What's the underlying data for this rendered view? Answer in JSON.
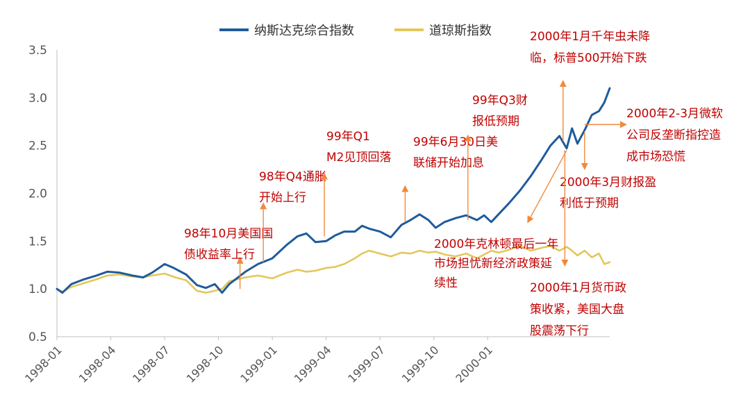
{
  "chart_data": {
    "type": "line",
    "title": "",
    "xlabel": "",
    "ylabel": "",
    "ylim": [
      0.5,
      3.5
    ],
    "yticks": [
      "0.5",
      "1.0",
      "1.5",
      "2.0",
      "2.5",
      "3.0",
      "3.5"
    ],
    "xticks": [
      "1998-01",
      "1998-04",
      "1998-07",
      "1998-10",
      "1999-01",
      "1999-04",
      "1999-07",
      "1999-10",
      "2000-01"
    ],
    "legend_position": "top-center",
    "grid": false,
    "series": [
      {
        "name": "纳斯达克综合指数",
        "color": "#1f5b9b",
        "points": [
          [
            0.0,
            1.0
          ],
          [
            0.3,
            0.96
          ],
          [
            0.8,
            1.05
          ],
          [
            1.5,
            1.1
          ],
          [
            2.2,
            1.14
          ],
          [
            2.8,
            1.18
          ],
          [
            3.5,
            1.17
          ],
          [
            4.2,
            1.14
          ],
          [
            4.8,
            1.12
          ],
          [
            5.3,
            1.17
          ],
          [
            6.0,
            1.26
          ],
          [
            6.5,
            1.22
          ],
          [
            7.2,
            1.15
          ],
          [
            7.8,
            1.04
          ],
          [
            8.3,
            1.01
          ],
          [
            8.8,
            1.05
          ],
          [
            9.2,
            0.96
          ],
          [
            9.6,
            1.05
          ],
          [
            10.5,
            1.18
          ],
          [
            11.2,
            1.26
          ],
          [
            12.0,
            1.32
          ],
          [
            12.8,
            1.46
          ],
          [
            13.4,
            1.55
          ],
          [
            13.9,
            1.58
          ],
          [
            14.4,
            1.49
          ],
          [
            15.0,
            1.5
          ],
          [
            15.5,
            1.56
          ],
          [
            16.0,
            1.6
          ],
          [
            16.6,
            1.6
          ],
          [
            17.0,
            1.66
          ],
          [
            17.4,
            1.63
          ],
          [
            18.0,
            1.6
          ],
          [
            18.6,
            1.54
          ],
          [
            19.2,
            1.67
          ],
          [
            19.7,
            1.72
          ],
          [
            20.2,
            1.78
          ],
          [
            20.7,
            1.72
          ],
          [
            21.1,
            1.64
          ],
          [
            21.6,
            1.7
          ],
          [
            22.2,
            1.74
          ],
          [
            22.8,
            1.77
          ],
          [
            23.4,
            1.72
          ],
          [
            23.8,
            1.77
          ],
          [
            24.2,
            1.7
          ],
          [
            24.6,
            1.78
          ],
          [
            25.2,
            1.9
          ],
          [
            25.8,
            2.03
          ],
          [
            26.4,
            2.18
          ],
          [
            27.0,
            2.35
          ],
          [
            27.5,
            2.5
          ],
          [
            28.0,
            2.6
          ],
          [
            28.4,
            2.47
          ],
          [
            28.7,
            2.68
          ],
          [
            29.0,
            2.52
          ],
          [
            29.4,
            2.66
          ],
          [
            29.8,
            2.82
          ],
          [
            30.2,
            2.86
          ],
          [
            30.5,
            2.95
          ],
          [
            30.8,
            3.1
          ]
        ]
      },
      {
        "name": "道琼斯指数",
        "color": "#e3c75a",
        "points": [
          [
            0.0,
            1.0
          ],
          [
            0.3,
            0.97
          ],
          [
            0.8,
            1.02
          ],
          [
            1.5,
            1.06
          ],
          [
            2.2,
            1.1
          ],
          [
            2.8,
            1.14
          ],
          [
            3.5,
            1.15
          ],
          [
            4.2,
            1.13
          ],
          [
            4.8,
            1.12
          ],
          [
            5.3,
            1.14
          ],
          [
            6.0,
            1.16
          ],
          [
            6.6,
            1.12
          ],
          [
            7.2,
            1.09
          ],
          [
            7.8,
            0.98
          ],
          [
            8.3,
            0.96
          ],
          [
            8.8,
            0.98
          ],
          [
            9.2,
            1.0
          ],
          [
            9.6,
            1.08
          ],
          [
            10.5,
            1.12
          ],
          [
            11.2,
            1.14
          ],
          [
            12.0,
            1.11
          ],
          [
            12.8,
            1.17
          ],
          [
            13.4,
            1.2
          ],
          [
            13.9,
            1.18
          ],
          [
            14.4,
            1.19
          ],
          [
            15.0,
            1.22
          ],
          [
            15.5,
            1.23
          ],
          [
            16.0,
            1.26
          ],
          [
            16.6,
            1.32
          ],
          [
            17.0,
            1.37
          ],
          [
            17.4,
            1.4
          ],
          [
            18.0,
            1.37
          ],
          [
            18.6,
            1.34
          ],
          [
            19.2,
            1.38
          ],
          [
            19.7,
            1.37
          ],
          [
            20.2,
            1.4
          ],
          [
            20.7,
            1.38
          ],
          [
            21.1,
            1.39
          ],
          [
            21.6,
            1.36
          ],
          [
            22.2,
            1.34
          ],
          [
            22.8,
            1.37
          ],
          [
            23.4,
            1.32
          ],
          [
            23.8,
            1.36
          ],
          [
            24.2,
            1.4
          ],
          [
            24.6,
            1.38
          ],
          [
            25.2,
            1.41
          ],
          [
            25.8,
            1.45
          ],
          [
            26.4,
            1.4
          ],
          [
            27.0,
            1.43
          ],
          [
            27.5,
            1.45
          ],
          [
            28.0,
            1.4
          ],
          [
            28.4,
            1.44
          ],
          [
            28.7,
            1.4
          ],
          [
            29.0,
            1.35
          ],
          [
            29.4,
            1.4
          ],
          [
            29.8,
            1.33
          ],
          [
            30.2,
            1.37
          ],
          [
            30.5,
            1.26
          ],
          [
            30.8,
            1.28
          ]
        ]
      }
    ],
    "annotations": [
      {
        "id": "a1",
        "lines": [
          "98年10月美国国",
          "债收益率上行"
        ],
        "x": 10.2,
        "y_from": 1.0,
        "y_to": 1.3,
        "arrow": "up"
      },
      {
        "id": "a2",
        "lines": [
          "98年Q4通胀",
          "开始上行"
        ],
        "x": 11.5,
        "y_from": 1.28,
        "y_to": 1.87,
        "arrow": "up"
      },
      {
        "id": "a3",
        "lines": [
          "99年Q1",
          "M2见顶回落"
        ],
        "x": 14.9,
        "y_from": 1.55,
        "y_to": 2.18,
        "arrow": "up"
      },
      {
        "id": "a4",
        "lines": [
          "99年6月30日美",
          "联储开始加息"
        ],
        "x": 19.4,
        "y_from": 1.7,
        "y_to": 2.05,
        "arrow": "up"
      },
      {
        "id": "a5",
        "lines": [
          "99年Q3财",
          "报低预期"
        ],
        "x": 22.9,
        "y_from": 1.72,
        "y_to": 2.58,
        "arrow": "up"
      },
      {
        "id": "a6",
        "lines": [
          "2000年1月千年虫未降",
          "临，标普500开始下跌"
        ],
        "x": 28.2,
        "y_from": 2.55,
        "y_to": 3.15,
        "arrow": "up"
      },
      {
        "id": "a7",
        "lines": [
          "2000年2-3月微软",
          "公司反垄断指控造",
          "成市场恐慌"
        ],
        "x": 29.4,
        "y_from": 2.72,
        "y_to": 2.72,
        "arrow": "right"
      },
      {
        "id": "a8",
        "lines": [
          "2000年3月财报盈",
          "利低于预期"
        ],
        "x": 29.4,
        "y_from": 2.65,
        "y_to": 2.28,
        "arrow": "down"
      },
      {
        "id": "a9",
        "lines": [
          "2000年克林顿最后一年",
          "市场担忧新经济政策延",
          "续性"
        ],
        "x": 24.0,
        "y_from": 2.45,
        "y_to": 1.75,
        "arrow": "diagonal"
      },
      {
        "id": "a10",
        "lines": [
          "2000年1月货币政",
          "策收紧，美国大盘",
          "股震荡下行"
        ],
        "x": 28.3,
        "y_from": 2.45,
        "y_to": 1.27,
        "arrow": "down"
      }
    ]
  }
}
